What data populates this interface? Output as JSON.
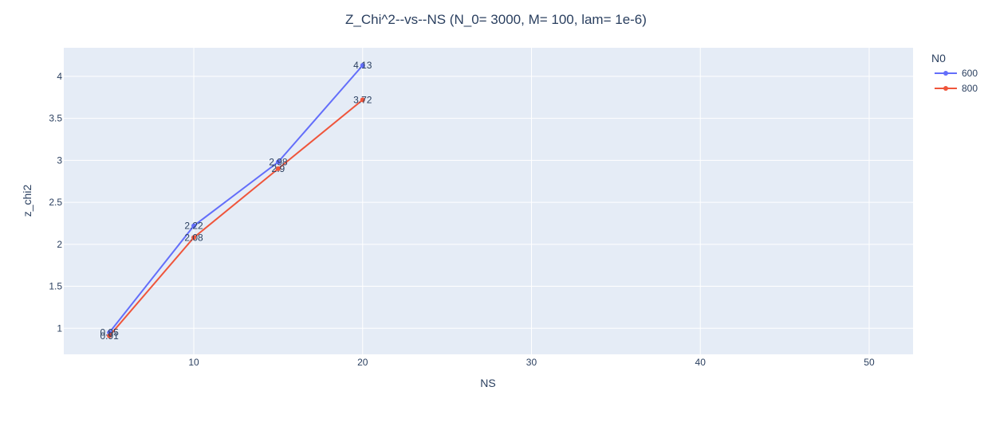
{
  "chart_data": {
    "type": "line",
    "title": "Z_Chi^2--vs--NS  (N_0= 3000, M= 100, lam= 1e-6)",
    "xlabel": "NS",
    "ylabel": "z_chi2",
    "xlim": [
      2.3,
      52.6
    ],
    "ylim": [
      0.69,
      4.34
    ],
    "x_ticks": [
      10,
      20,
      30,
      40,
      50
    ],
    "y_ticks": [
      1,
      1.5,
      2,
      2.5,
      3,
      3.5,
      4
    ],
    "x_tick_labels": [
      "10",
      "20",
      "30",
      "40",
      "50"
    ],
    "y_tick_labels": [
      "1",
      "1.5",
      "2",
      "2.5",
      "3",
      "3.5",
      "4"
    ],
    "grid": true,
    "legend": {
      "title": "N0",
      "position": "right"
    },
    "series": [
      {
        "name": "600",
        "color": "#636efa",
        "x": [
          5,
          10,
          15,
          20
        ],
        "y": [
          0.95,
          2.22,
          2.98,
          4.13
        ],
        "labels": [
          "0.95",
          "2.22",
          "2.98",
          "4.13"
        ]
      },
      {
        "name": "800",
        "color": "#ef553b",
        "x": [
          5,
          10,
          15,
          20
        ],
        "y": [
          0.91,
          2.08,
          2.9,
          3.72
        ],
        "labels": [
          "0.91",
          "2.08",
          "2.9",
          "3.72"
        ]
      }
    ],
    "colors": {
      "plot_bg": "#e5ecf6",
      "grid": "#ffffff",
      "text": "#2a3f5f"
    }
  }
}
